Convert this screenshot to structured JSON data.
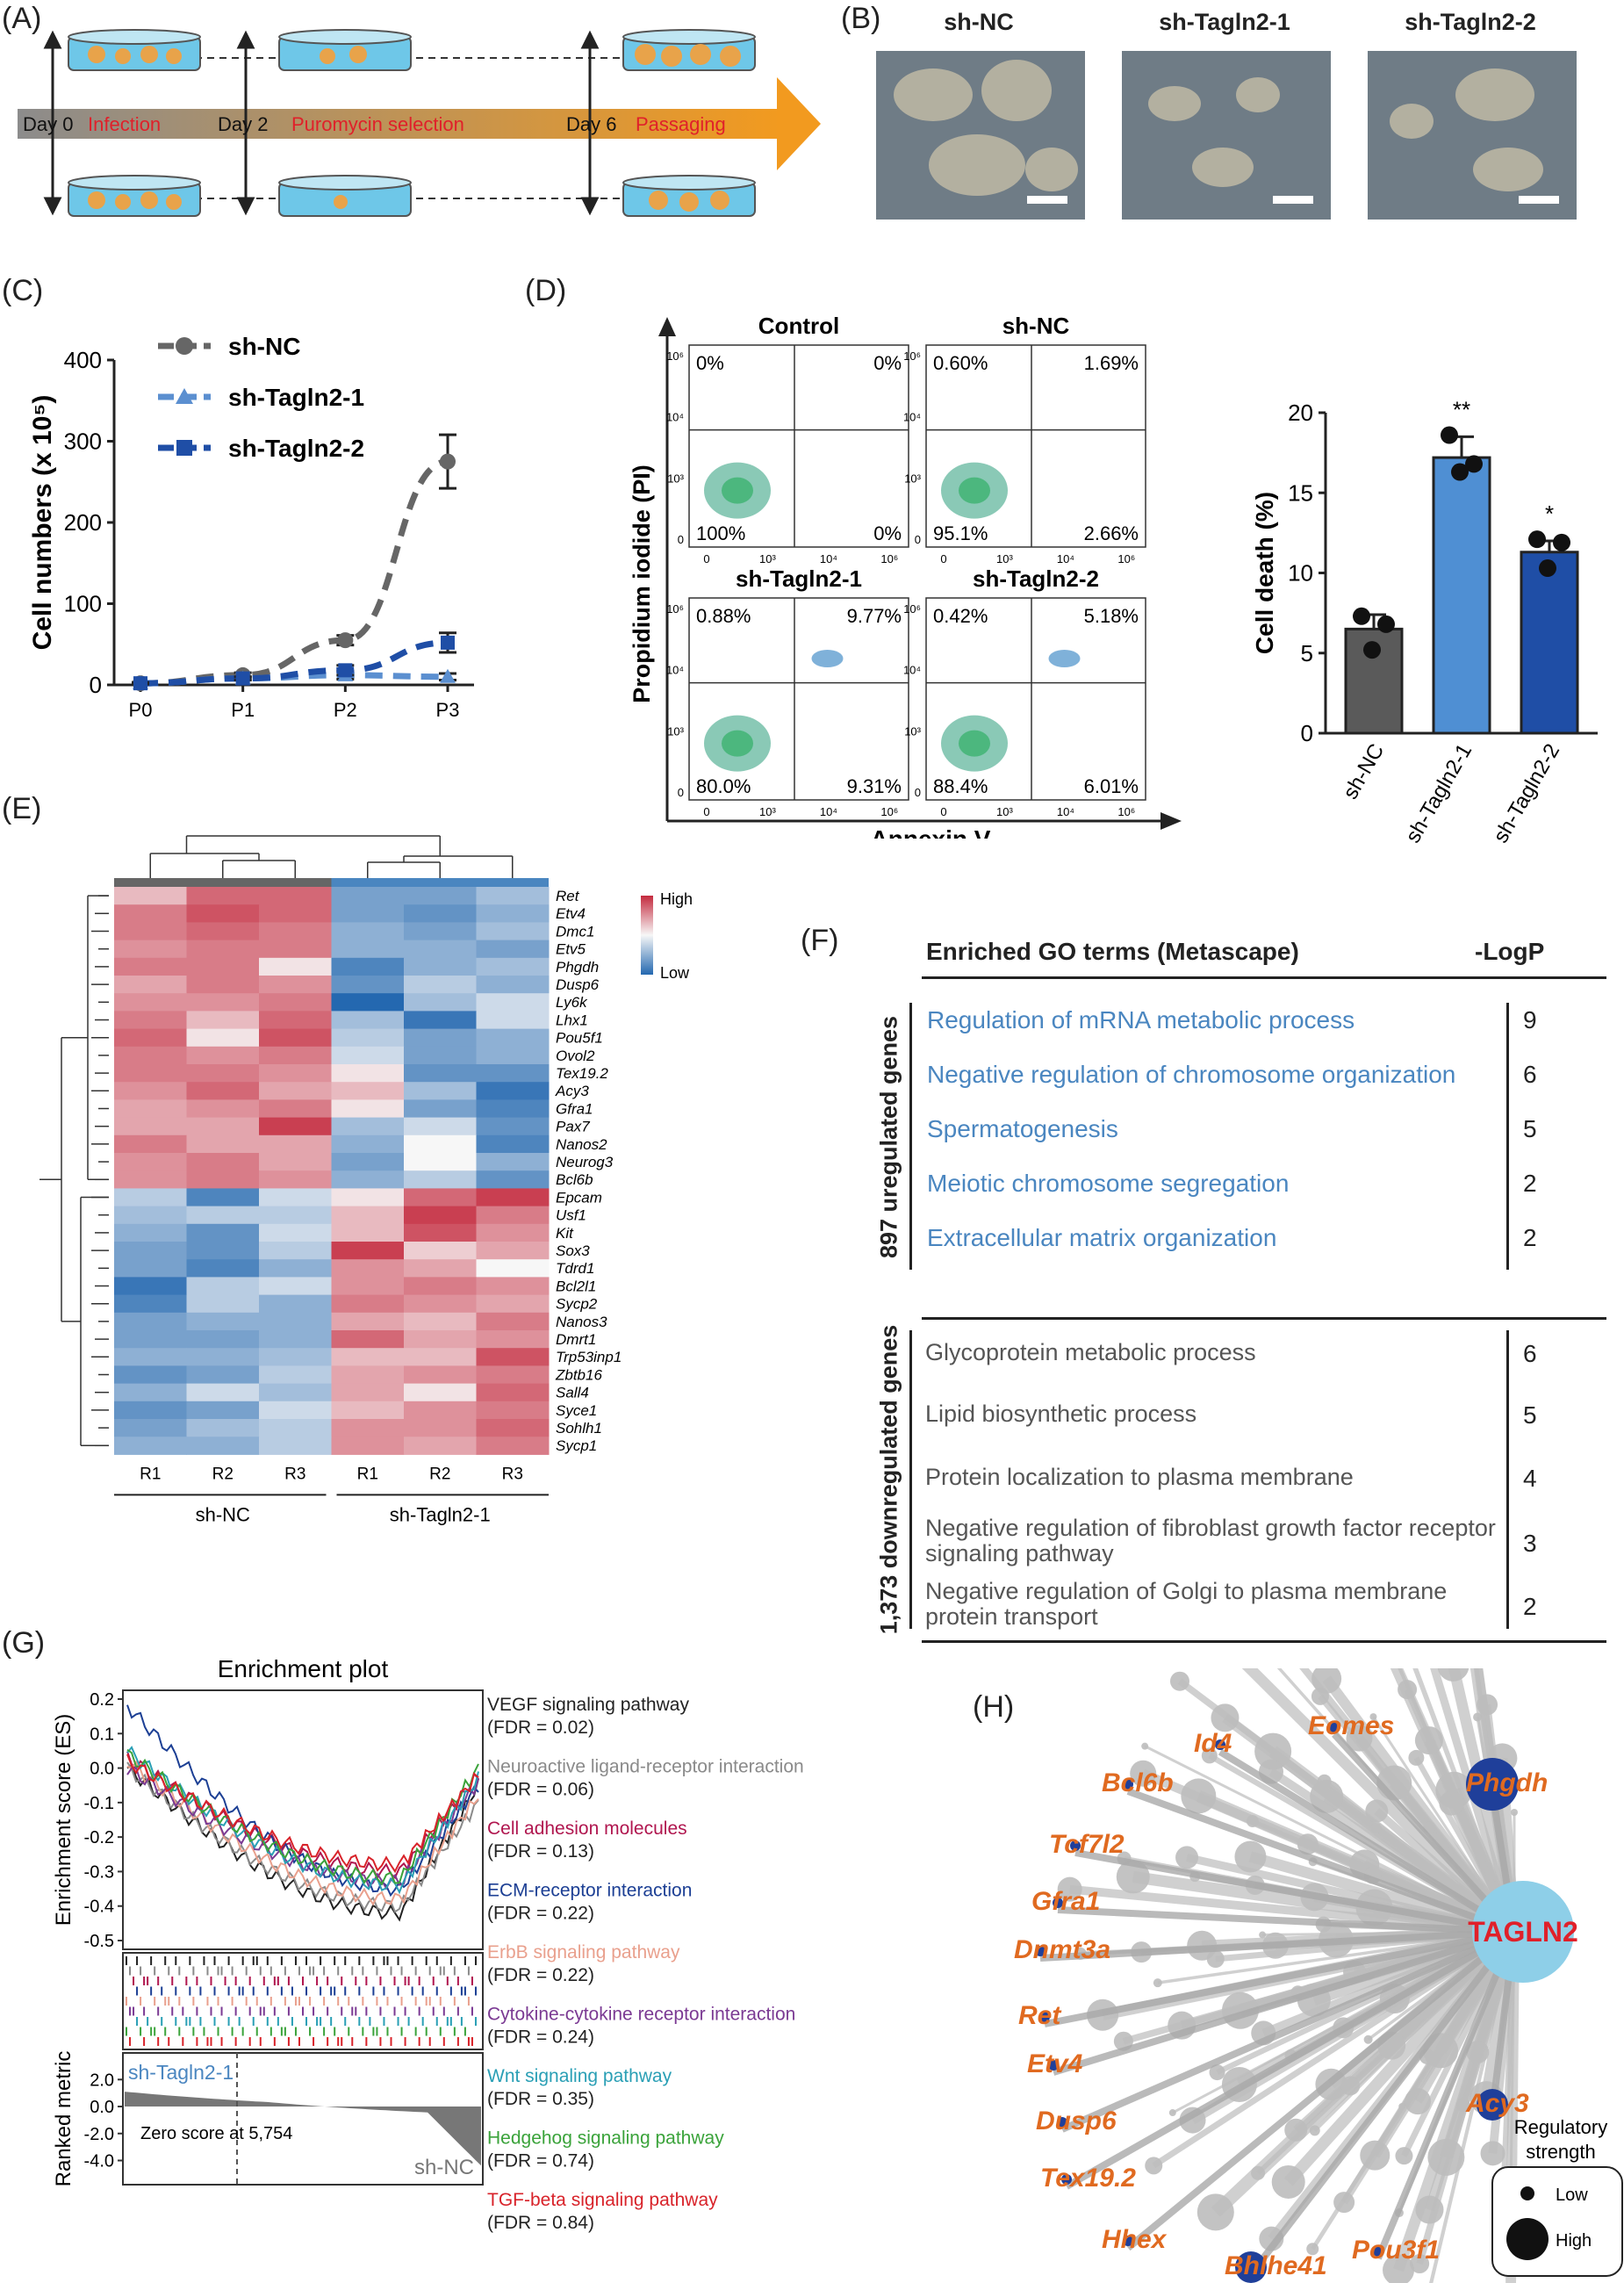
{
  "panels": {
    "A": "(A)",
    "B": "(B)",
    "C": "(C)",
    "D": "(D)",
    "E": "(E)",
    "F": "(F)",
    "G": "(G)",
    "H": "(H)"
  },
  "panel_a": {
    "days": [
      "Day 0",
      "Day 2",
      "Day 6"
    ],
    "steps": [
      "Infection",
      "Puromycin selection",
      "Passaging"
    ],
    "colors": {
      "arrow_start": "#8c8c8c",
      "arrow_end": "#f29a1f",
      "step_text": "#e0202a",
      "dish": "#6ec7e8"
    }
  },
  "panel_b": {
    "titles": [
      "sh-NC",
      "sh-Tagln2-1",
      "sh-Tagln2-2"
    ]
  },
  "panel_c": {
    "ylabel": "Cell numbers (x 10⁵)",
    "legend": [
      "sh-NC",
      "sh-Tagln2-1",
      "sh-Tagln2-2"
    ],
    "chart_data": {
      "type": "line",
      "categories": [
        "P0",
        "P1",
        "P2",
        "P3"
      ],
      "ylim": [
        0,
        400
      ],
      "yticks": [
        0,
        100,
        200,
        300,
        400
      ],
      "series": [
        {
          "name": "sh-NC",
          "values": [
            2,
            12,
            55,
            275
          ],
          "err": [
            1,
            3,
            6,
            33
          ],
          "color": "#666666"
        },
        {
          "name": "sh-Tagln2-1",
          "values": [
            2,
            8,
            12,
            10
          ],
          "err": [
            1,
            2,
            5,
            4
          ],
          "color": "#5b8fd0"
        },
        {
          "name": "sh-Tagln2-2",
          "values": [
            2,
            8,
            18,
            52
          ],
          "err": [
            1,
            2,
            6,
            12
          ],
          "color": "#1f4ea6"
        }
      ]
    }
  },
  "panel_d": {
    "flow": {
      "plots": [
        {
          "title": "Control",
          "q": [
            "0%",
            "0%",
            "100%",
            "0%"
          ]
        },
        {
          "title": "sh-NC",
          "q": [
            "0.60%",
            "1.69%",
            "95.1%",
            "2.66%"
          ]
        },
        {
          "title": "sh-Tagln2-1",
          "q": [
            "0.88%",
            "9.77%",
            "80.0%",
            "9.31%"
          ]
        },
        {
          "title": "sh-Tagln2-2",
          "q": [
            "0.42%",
            "5.18%",
            "88.4%",
            "6.01%"
          ]
        }
      ],
      "xlabel": "Annexin V",
      "ylabel": "Propidium iodide (PI)"
    },
    "bar": {
      "ylabel": "Cell death (%)",
      "chart_data": {
        "type": "bar",
        "categories": [
          "sh-NC",
          "sh-Tagln2-1",
          "sh-Tagln2-2"
        ],
        "values": [
          6.5,
          17.2,
          11.3
        ],
        "err": [
          0.9,
          1.3,
          0.7
        ],
        "points": [
          [
            7.3,
            6.8,
            5.2
          ],
          [
            18.6,
            16.8,
            16.3
          ],
          [
            12.1,
            11.9,
            10.3
          ]
        ],
        "sig": [
          "",
          "**",
          "*"
        ],
        "ylim": [
          0,
          20
        ],
        "yticks": [
          0,
          5,
          10,
          15,
          20
        ],
        "colors": [
          "#5a5a5a",
          "#4f8fd3",
          "#1f4ea6"
        ]
      }
    }
  },
  "panel_e": {
    "legend": {
      "high": "High",
      "low": "Low"
    },
    "samples": [
      "R1",
      "R2",
      "R3",
      "R1",
      "R2",
      "R3"
    ],
    "groups": [
      "sh-NC",
      "sh-Tagln2-1"
    ],
    "genes": [
      "Ret",
      "Etv4",
      "Dmc1",
      "Etv5",
      "Phgdh",
      "Dusp6",
      "Ly6k",
      "Lhx1",
      "Pou5f1",
      "Ovol2",
      "Tex19.2",
      "Acy3",
      "Gfra1",
      "Pax7",
      "Nanos2",
      "Neurog3",
      "Bcl6b",
      "Epcam",
      "Usf1",
      "Kit",
      "Sox3",
      "Tdrd1",
      "Bcl2l1",
      "Sycp2",
      "Nanos3",
      "Dmrt1",
      "Trp53inp1",
      "Zbtb16",
      "Sall4",
      "Syce1",
      "Sohlh1",
      "Sycp1"
    ],
    "chart_data": {
      "type": "heatmap",
      "values": [
        [
          0.3,
          0.7,
          0.7,
          -0.6,
          -0.6,
          -0.4
        ],
        [
          0.6,
          0.8,
          0.7,
          -0.6,
          -0.7,
          -0.5
        ],
        [
          0.6,
          0.7,
          0.6,
          -0.5,
          -0.6,
          -0.4
        ],
        [
          0.5,
          0.6,
          0.6,
          -0.5,
          -0.5,
          -0.6
        ],
        [
          0.6,
          0.6,
          0.1,
          -0.8,
          -0.5,
          -0.4
        ],
        [
          0.4,
          0.6,
          0.5,
          -0.7,
          -0.3,
          -0.5
        ],
        [
          0.5,
          0.5,
          0.6,
          -1.0,
          -0.4,
          -0.2
        ],
        [
          0.6,
          0.3,
          0.7,
          -0.4,
          -0.9,
          -0.2
        ],
        [
          0.7,
          0.1,
          0.8,
          -0.3,
          -0.6,
          -0.5
        ],
        [
          0.6,
          0.5,
          0.6,
          -0.2,
          -0.6,
          -0.5
        ],
        [
          0.6,
          0.6,
          0.5,
          0.1,
          -0.7,
          -0.7
        ],
        [
          0.5,
          0.7,
          0.4,
          0.3,
          -0.4,
          -0.9
        ],
        [
          0.4,
          0.5,
          0.6,
          0.1,
          -0.6,
          -0.8
        ],
        [
          0.4,
          0.4,
          0.9,
          -0.4,
          -0.2,
          -0.7
        ],
        [
          0.6,
          0.4,
          0.4,
          -0.5,
          0.0,
          -0.8
        ],
        [
          0.5,
          0.6,
          0.4,
          -0.6,
          0.0,
          -0.5
        ],
        [
          0.5,
          0.6,
          0.5,
          -0.5,
          -0.3,
          -0.7
        ],
        [
          -0.3,
          -0.8,
          -0.2,
          0.1,
          0.7,
          0.9
        ],
        [
          -0.4,
          -0.3,
          -0.3,
          0.3,
          0.9,
          0.6
        ],
        [
          -0.5,
          -0.7,
          -0.2,
          0.3,
          0.8,
          0.5
        ],
        [
          -0.6,
          -0.7,
          -0.3,
          0.9,
          0.2,
          0.4
        ],
        [
          -0.6,
          -0.8,
          -0.5,
          0.5,
          0.4,
          0.0
        ],
        [
          -0.9,
          -0.3,
          -0.2,
          0.5,
          0.6,
          0.5
        ],
        [
          -0.8,
          -0.3,
          -0.5,
          0.6,
          0.5,
          0.4
        ],
        [
          -0.6,
          -0.5,
          -0.5,
          0.4,
          0.3,
          0.6
        ],
        [
          -0.6,
          -0.6,
          -0.5,
          0.7,
          0.4,
          0.5
        ],
        [
          -0.5,
          -0.5,
          -0.4,
          0.3,
          0.3,
          0.8
        ],
        [
          -0.7,
          -0.6,
          -0.3,
          0.4,
          0.5,
          0.6
        ],
        [
          -0.5,
          -0.2,
          -0.4,
          0.4,
          0.1,
          0.7
        ],
        [
          -0.7,
          -0.6,
          -0.2,
          0.3,
          0.5,
          0.6
        ],
        [
          -0.6,
          -0.4,
          -0.3,
          0.5,
          0.5,
          0.7
        ],
        [
          -0.5,
          -0.5,
          -0.3,
          0.5,
          0.4,
          0.6
        ]
      ]
    }
  },
  "panel_f": {
    "header": "Enriched GO terms (Metascape)",
    "header_right": "-LogP",
    "up_label": "897 uregulated genes",
    "down_label": "1,373 downregulated genes",
    "up": [
      {
        "term": "Regulation of mRNA metabolic process",
        "logp": "9"
      },
      {
        "term": "Negative regulation of chromosome organization",
        "logp": "6"
      },
      {
        "term": "Spermatogenesis",
        "logp": "5"
      },
      {
        "term": "Meiotic chromosome segregation",
        "logp": "2"
      },
      {
        "term": "Extracellular matrix organization",
        "logp": "2"
      }
    ],
    "down": [
      {
        "term": "Glycoprotein metabolic process",
        "logp": "6"
      },
      {
        "term": "Lipid biosynthetic process",
        "logp": "5"
      },
      {
        "term": "Protein localization to plasma membrane",
        "logp": "4"
      },
      {
        "term": "Negative regulation of fibroblast growth factor receptor signaling pathway",
        "logp": "3"
      },
      {
        "term": "Negative regulation of Golgi to plasma membrane protein transport",
        "logp": "2"
      }
    ]
  },
  "panel_g": {
    "title": "Enrichment plot",
    "ylabel_top": "Enrichment score (ES)",
    "ylabel_bottom": "Ranked metric",
    "top_label": "sh-Tagln2-1",
    "bottom_label": "sh-NC",
    "zero_label": "Zero score at 5,754",
    "es_ticks": [
      "0.2",
      "0.1",
      "0.0",
      "-0.1",
      "-0.2",
      "-0.3",
      "-0.4",
      "-0.5"
    ],
    "rm_ticks": [
      "2.0",
      "0.0",
      "-2.0",
      "-4.0"
    ],
    "pathways": [
      {
        "name": "VEGF signaling pathway",
        "fdr": "(FDR = 0.02)",
        "color": "#222222"
      },
      {
        "name": "Neuroactive ligand-receptor interaction",
        "fdr": "(FDR = 0.06)",
        "color": "#8a8a8a"
      },
      {
        "name": "Cell adhesion molecules",
        "fdr": "(FDR = 0.13)",
        "color": "#b0164f"
      },
      {
        "name": "ECM-receptor interaction",
        "fdr": "(FDR = 0.22)",
        "color": "#1c3f94"
      },
      {
        "name": "ErbB signaling pathway",
        "fdr": "(FDR = 0.22)",
        "color": "#e9a08d"
      },
      {
        "name": "Cytokine-cytokine receptor interaction",
        "fdr": "(FDR = 0.24)",
        "color": "#7b3a93"
      },
      {
        "name": "Wnt signaling pathway",
        "fdr": "(FDR = 0.35)",
        "color": "#2a9fb5"
      },
      {
        "name": "Hedgehog signaling pathway",
        "fdr": "(FDR = 0.74)",
        "color": "#3aa33a"
      },
      {
        "name": "TGF-beta signaling pathway",
        "fdr": "(FDR = 0.84)",
        "color": "#d8232a"
      }
    ]
  },
  "panel_h": {
    "hub": "TAGLN2",
    "genes": [
      "Eomes",
      "Id4",
      "Bcl6b",
      "Phgdh",
      "Tcf7l2",
      "Gfra1",
      "Dnmt3a",
      "Ret",
      "Etv4",
      "Dusp6",
      "Acy3",
      "Tex19.2",
      "Hhex",
      "Bhlhe41",
      "Pou3f1"
    ],
    "legend_title": "Regulatory strength",
    "legend": [
      "Low",
      "High"
    ]
  }
}
